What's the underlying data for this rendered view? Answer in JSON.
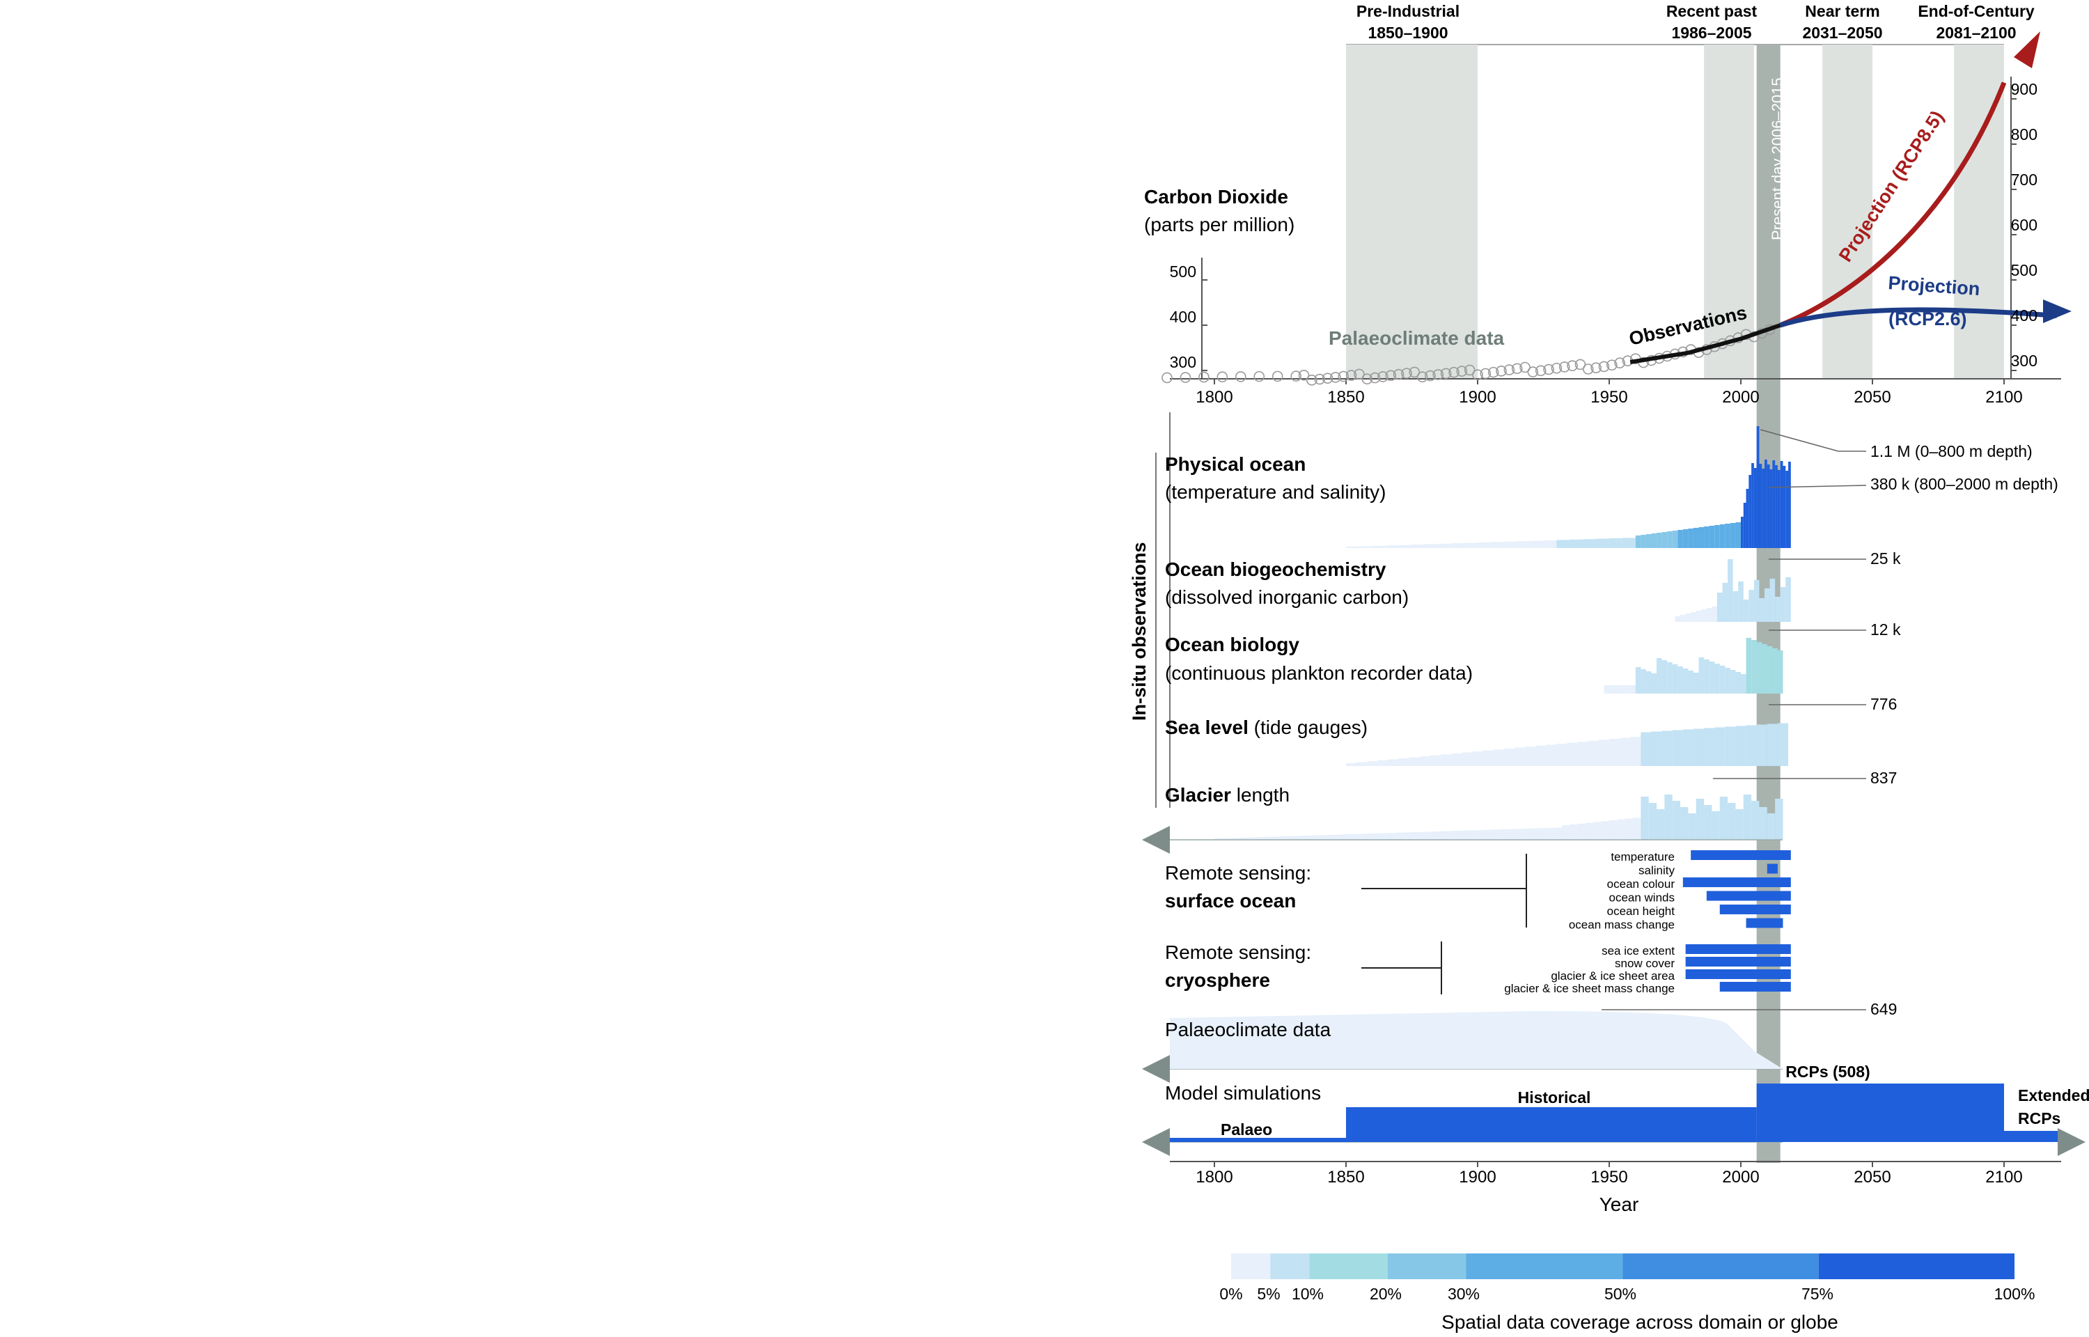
{
  "periods": [
    {
      "label": "Pre-Industrial",
      "range": "1850–1900",
      "start": 1850,
      "end": 1900
    },
    {
      "label": "Recent past",
      "range": "1986–2005",
      "start": 1986,
      "end": 2005
    },
    {
      "label": "Near term",
      "range": "2031–2050",
      "start": 2031,
      "end": 2050
    },
    {
      "label": "End-of-Century",
      "range": "2081–2100",
      "start": 2081,
      "end": 2100
    }
  ],
  "present_day": {
    "label": "Present day 2006–2015",
    "start": 2006,
    "end": 2015
  },
  "co2": {
    "title": "Carbon Dioxide",
    "unit": "(parts per million)",
    "left_ticks": [
      "300",
      "400",
      "500"
    ],
    "right_ticks": [
      "300",
      "400",
      "500",
      "600",
      "700",
      "800",
      "900"
    ],
    "palaeo_label": "Palaeoclimate data",
    "obs_label": "Observations",
    "rcp85_label": "Projection (RCP8.5)",
    "rcp26_label": "Projection",
    "rcp26_sub": "(RCP2.6)"
  },
  "x_ticks": [
    "1800",
    "1850",
    "1900",
    "1950",
    "2000",
    "2050",
    "2100"
  ],
  "x_axis_label": "Year",
  "in_situ_label": "In-situ observations",
  "rows": [
    {
      "title": "Physical ocean",
      "sub": "(temperature and salinity)"
    },
    {
      "title": "Ocean biogeochemistry",
      "sub": "(dissolved inorganic carbon)"
    },
    {
      "title": "Ocean biology",
      "sub": "(continuous plankton recorder data)"
    },
    {
      "title": "Sea level",
      "sub": " (tide gauges)"
    },
    {
      "title": "Glacier",
      "sub": " length"
    }
  ],
  "counts": [
    "1.1 M (0–800 m depth)",
    "380 k (800–2000 m depth)",
    "25 k",
    "12 k",
    "776",
    "837",
    "649"
  ],
  "remote_ocean": {
    "title": "Remote sensing:",
    "sub": "surface ocean",
    "items": [
      {
        "name": "temperature",
        "start": 1981,
        "end": 2019
      },
      {
        "name": "salinity",
        "start": 2010,
        "end": 2014
      },
      {
        "name": "ocean colour",
        "start": 1978,
        "end": 2019
      },
      {
        "name": "ocean winds",
        "start": 1987,
        "end": 2019
      },
      {
        "name": "ocean height",
        "start": 1992,
        "end": 2019
      },
      {
        "name": "ocean mass change",
        "start": 2002,
        "end": 2016
      }
    ]
  },
  "remote_cryo": {
    "title": "Remote sensing:",
    "sub": "cryosphere",
    "items": [
      {
        "name": "sea ice extent",
        "start": 1979,
        "end": 2019
      },
      {
        "name": "snow cover",
        "start": 1979,
        "end": 2019
      },
      {
        "name": "glacier & ice sheet area",
        "start": 1979,
        "end": 2019
      },
      {
        "name": "glacier & ice sheet mass change",
        "start": 1992,
        "end": 2019
      }
    ]
  },
  "palaeo_row_label": "Palaeoclimate data",
  "model": {
    "title": "Model simulations",
    "palaeo": "Palaeo",
    "historical": "Historical",
    "rcps": "RCPs (508)",
    "extended_1": "Extended",
    "extended_2": "RCPs"
  },
  "legend": {
    "title": "Spatial data coverage across domain or globe",
    "labels": [
      "0%",
      "5%",
      "10%",
      "20%",
      "30%",
      "50%",
      "75%",
      "100%"
    ],
    "stops": [
      0,
      5,
      10,
      20,
      30,
      50,
      75,
      100
    ],
    "colors": [
      "#e7f0fb",
      "#c3e2f4",
      "#a3dde3",
      "#86c7e8",
      "#5eaee6",
      "#3f8ee2",
      "#1f5fdc"
    ]
  },
  "colors": {
    "rcp85": "#a81c1c",
    "rcp26": "#1c3c88",
    "blue_strong": "#1f5fdc",
    "band_grey": "#dde2df",
    "present_grey": "#a9b3ae",
    "arrow_grey": "#7e8d8a"
  },
  "chart_data": {
    "type": "line",
    "x_range": [
      1780,
      2120
    ],
    "co2_ylim": [
      280,
      950
    ],
    "co2_samples": [
      {
        "year": 1750,
        "ppm": 277
      },
      {
        "year": 1800,
        "ppm": 282
      },
      {
        "year": 1850,
        "ppm": 285
      },
      {
        "year": 1900,
        "ppm": 296
      },
      {
        "year": 1950,
        "ppm": 311
      },
      {
        "year": 1980,
        "ppm": 339
      },
      {
        "year": 2000,
        "ppm": 370
      },
      {
        "year": 2015,
        "ppm": 400
      }
    ],
    "rcp85": [
      {
        "year": 2015,
        "ppm": 400
      },
      {
        "year": 2050,
        "ppm": 540
      },
      {
        "year": 2100,
        "ppm": 936
      }
    ],
    "rcp26": [
      {
        "year": 2015,
        "ppm": 400
      },
      {
        "year": 2050,
        "ppm": 443
      },
      {
        "year": 2100,
        "ppm": 421
      }
    ]
  }
}
